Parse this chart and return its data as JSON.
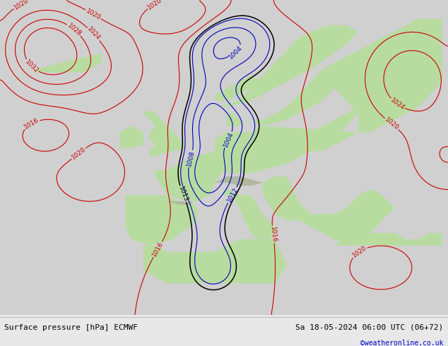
{
  "title_left": "Surface pressure [hPa] ECMWF",
  "title_right": "Sa 18-05-2024 06:00 UTC (06+72)",
  "credit": "©weatheronline.co.uk",
  "bg_color": "#d8d8d8",
  "land_color": "#b8dca0",
  "mountain_color": "#a8a8a8",
  "sea_color": "#d0d0d0",
  "footer_bg": "#e8e8e8",
  "contour_black": "#000000",
  "contour_blue": "#0000bb",
  "contour_red": "#cc0000",
  "label_fontsize": 6.5,
  "footer_fontsize": 8,
  "credit_fontsize": 7,
  "credit_color": "#0000cc",
  "map_bg": "#d4d4d4"
}
